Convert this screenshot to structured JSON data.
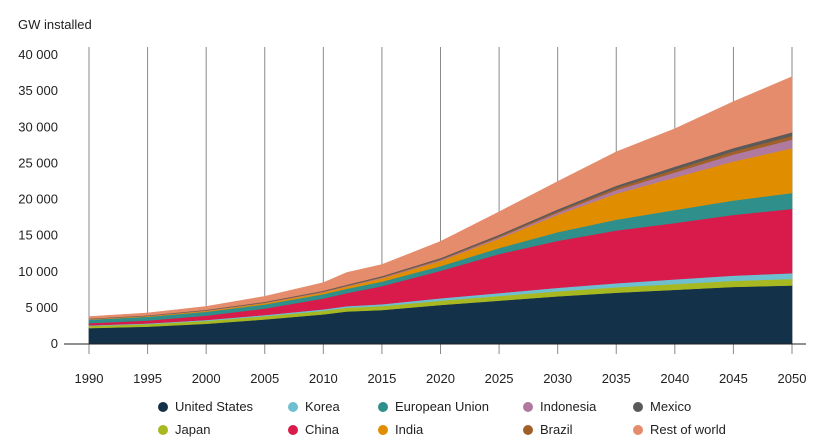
{
  "chart_data": {
    "type": "area",
    "stacked": true,
    "title": "",
    "ylabel": "GW installed",
    "xlabel": "",
    "x": [
      1990,
      1995,
      2000,
      2005,
      2010,
      2012,
      2015,
      2020,
      2025,
      2030,
      2035,
      2040,
      2045,
      2050
    ],
    "xticks": [
      "1990",
      "1995",
      "2000",
      "2005",
      "2010",
      "2015",
      "2020",
      "2025",
      "2030",
      "2035",
      "2040",
      "2045",
      "2050"
    ],
    "yticks": [
      "0",
      "5 000",
      "10 000",
      "15 000",
      "20 000",
      "25 000",
      "30 000",
      "35 000",
      "40 000"
    ],
    "ylim": [
      0,
      40000
    ],
    "xlim": [
      1990,
      2050
    ],
    "grid": "vertical",
    "legend_position": "bottom",
    "series": [
      {
        "name": "United States",
        "color": "#14314a",
        "values": [
          2200,
          2400,
          2800,
          3400,
          4100,
          4500,
          4700,
          5400,
          6000,
          6600,
          7100,
          7500,
          7900,
          8100
        ]
      },
      {
        "name": "Japan",
        "color": "#a8b820",
        "values": [
          300,
          350,
          400,
          450,
          500,
          520,
          550,
          600,
          650,
          700,
          750,
          800,
          850,
          900
        ]
      },
      {
        "name": "Korea",
        "color": "#6ebfcf",
        "values": [
          80,
          100,
          130,
          160,
          200,
          220,
          260,
          330,
          400,
          480,
          560,
          650,
          720,
          800
        ]
      },
      {
        "name": "China",
        "color": "#d81b4a",
        "values": [
          300,
          400,
          600,
          900,
          1500,
          1800,
          2500,
          3800,
          5400,
          6500,
          7300,
          7800,
          8400,
          8900
        ]
      },
      {
        "name": "European Union",
        "color": "#2f8f8a",
        "values": [
          500,
          520,
          540,
          570,
          600,
          610,
          630,
          650,
          830,
          1200,
          1500,
          1800,
          2000,
          2200
        ]
      },
      {
        "name": "India",
        "color": "#e08e00",
        "values": [
          60,
          80,
          120,
          180,
          250,
          300,
          450,
          700,
          1300,
          2400,
          3600,
          4500,
          5400,
          6200
        ]
      },
      {
        "name": "Indonesia",
        "color": "#b07aa0",
        "values": [
          20,
          30,
          40,
          50,
          70,
          80,
          100,
          150,
          200,
          300,
          500,
          700,
          950,
          1200
        ]
      },
      {
        "name": "Brazil",
        "color": "#a0602a",
        "values": [
          30,
          40,
          50,
          60,
          70,
          80,
          90,
          110,
          150,
          200,
          300,
          400,
          450,
          500
        ]
      },
      {
        "name": "Mexico",
        "color": "#5a5a5a",
        "values": [
          40,
          50,
          60,
          70,
          90,
          100,
          120,
          160,
          200,
          250,
          300,
          400,
          450,
          500
        ]
      },
      {
        "name": "Rest of world",
        "color": "#e48c6c",
        "values": [
          270,
          330,
          460,
          760,
          1120,
          1690,
          1600,
          2300,
          3170,
          3870,
          4690,
          5250,
          6430,
          7700
        ]
      }
    ],
    "legend_order": [
      "United States",
      "Korea",
      "European Union",
      "Indonesia",
      "Mexico",
      "Japan",
      "China",
      "India",
      "Brazil",
      "Rest of world"
    ]
  }
}
